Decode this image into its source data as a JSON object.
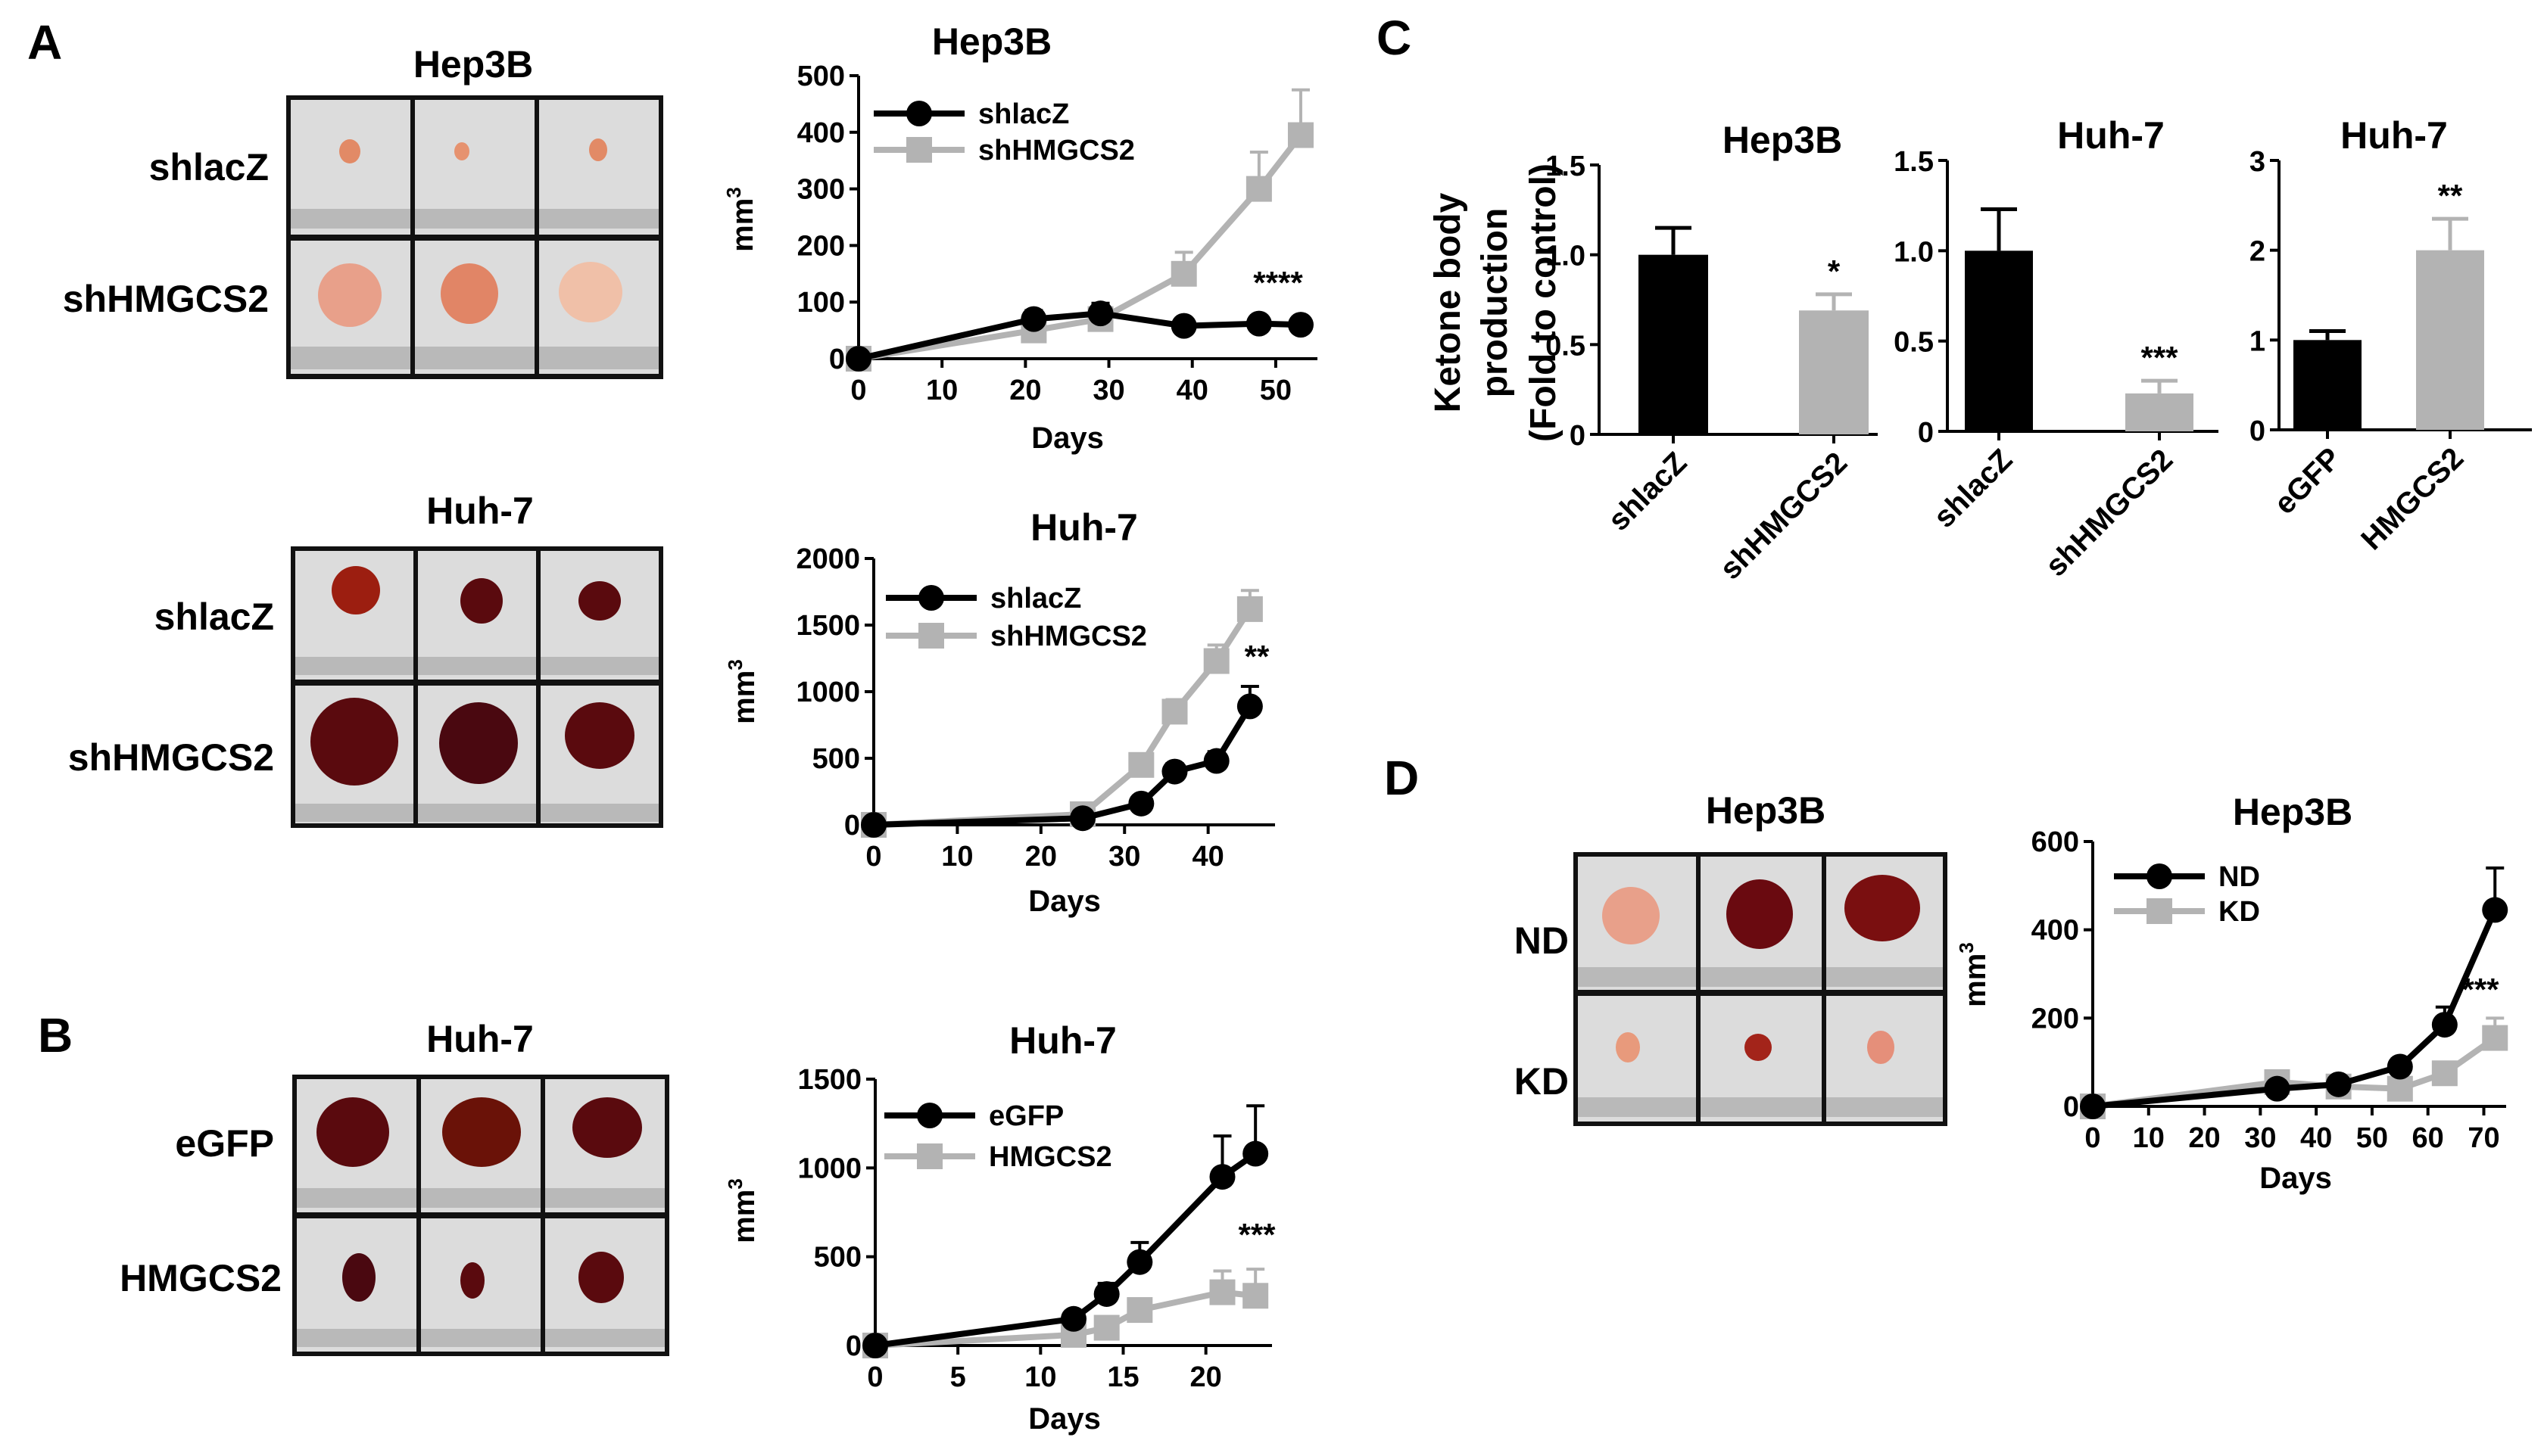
{
  "colors": {
    "black_series": "#000000",
    "gray_series": "#b3b3b3",
    "photo_bg": "#dcdcdc",
    "tumor_light": "#e89a7c",
    "tumor_dark": "#5a0a0e"
  },
  "panels": {
    "A": {
      "label": "A",
      "hep3b_photo": {
        "title": "Hep3B",
        "rows": [
          "shlacZ",
          "shHMGCS2"
        ]
      },
      "huh7_photo": {
        "title": "Huh-7",
        "rows": [
          "shlacZ",
          "shHMGCS2"
        ]
      }
    },
    "B": {
      "label": "B",
      "huh7_photo": {
        "title": "Huh-7",
        "rows": [
          "eGFP",
          "HMGCS2"
        ]
      }
    },
    "C": {
      "label": "C"
    },
    "D": {
      "label": "D",
      "hep3b_photo": {
        "title": "Hep3B",
        "rows": [
          "ND",
          "KD"
        ]
      }
    }
  },
  "chart_data": [
    {
      "id": "A_hep3b_growth",
      "type": "line",
      "title": "Hep3B",
      "xlabel": "Days",
      "ylabel": "mm3",
      "xlim": [
        0,
        55
      ],
      "ylim": [
        0,
        500
      ],
      "xticks": [
        "0",
        "10",
        "20",
        "30",
        "40",
        "50"
      ],
      "yticks": [
        "0",
        "100",
        "200",
        "300",
        "400",
        "500"
      ],
      "significance": "****",
      "series": [
        {
          "name": "shlacZ",
          "color": "#000000",
          "marker": "circle",
          "x": [
            0,
            21,
            29,
            39,
            48,
            53
          ],
          "values": [
            0,
            70,
            80,
            58,
            62,
            60
          ],
          "err": [
            0,
            15,
            18,
            8,
            10,
            8
          ]
        },
        {
          "name": "shHMGCS2",
          "color": "#b3b3b3",
          "marker": "square",
          "x": [
            0,
            21,
            29,
            39,
            48,
            53
          ],
          "values": [
            0,
            50,
            70,
            150,
            300,
            395
          ],
          "err": [
            0,
            12,
            15,
            38,
            65,
            80
          ]
        }
      ]
    },
    {
      "id": "A_huh7_growth",
      "type": "line",
      "title": "Huh-7",
      "xlabel": "Days",
      "ylabel": "mm3",
      "xlim": [
        0,
        48
      ],
      "ylim": [
        0,
        2000
      ],
      "xticks": [
        "0",
        "10",
        "20",
        "30",
        "40"
      ],
      "yticks": [
        "0",
        "500",
        "1000",
        "1500",
        "2000"
      ],
      "significance": "**",
      "series": [
        {
          "name": "shlacZ",
          "color": "#000000",
          "marker": "circle",
          "x": [
            0,
            25,
            32,
            36,
            41,
            45
          ],
          "values": [
            0,
            50,
            160,
            400,
            480,
            890
          ],
          "err": [
            0,
            20,
            30,
            60,
            70,
            150
          ]
        },
        {
          "name": "shHMGCS2",
          "color": "#b3b3b3",
          "marker": "square",
          "x": [
            0,
            25,
            32,
            36,
            41,
            45
          ],
          "values": [
            0,
            80,
            450,
            850,
            1230,
            1620
          ],
          "err": [
            0,
            25,
            60,
            90,
            120,
            140
          ]
        }
      ]
    },
    {
      "id": "B_huh7_growth",
      "type": "line",
      "title": "Huh-7",
      "xlabel": "Days",
      "ylabel": "mm3",
      "xlim": [
        0,
        24
      ],
      "ylim": [
        0,
        1500
      ],
      "xticks": [
        "0",
        "5",
        "10",
        "15",
        "20"
      ],
      "yticks": [
        "0",
        "500",
        "1000",
        "1500"
      ],
      "significance": "***",
      "series": [
        {
          "name": "eGFP",
          "color": "#000000",
          "marker": "circle",
          "x": [
            0,
            12,
            14,
            16,
            21,
            23
          ],
          "values": [
            0,
            150,
            290,
            470,
            950,
            1080
          ],
          "err": [
            0,
            40,
            60,
            110,
            230,
            270
          ]
        },
        {
          "name": "HMGCS2",
          "color": "#b3b3b3",
          "marker": "square",
          "x": [
            0,
            12,
            14,
            16,
            21,
            23
          ],
          "values": [
            0,
            60,
            100,
            200,
            300,
            280
          ],
          "err": [
            0,
            20,
            30,
            60,
            120,
            150
          ]
        }
      ]
    },
    {
      "id": "C_hep3b_ketone",
      "type": "bar",
      "title": "Hep3B",
      "ylabel_lines": [
        "Ketone body",
        "production",
        "(Fold to control)"
      ],
      "categories": [
        "shlacZ",
        "shHMGCS2"
      ],
      "values": [
        1.0,
        0.69
      ],
      "err": [
        0.15,
        0.09
      ],
      "colors": [
        "#000000",
        "#b3b3b3"
      ],
      "ylim": [
        0,
        1.5
      ],
      "yticks": [
        "0",
        "0.5",
        "1.0",
        "1.5"
      ],
      "significance": [
        "",
        "*"
      ]
    },
    {
      "id": "C_huh7_ketone_kd",
      "type": "bar",
      "title": "Huh-7",
      "categories": [
        "shlacZ",
        "shHMGCS2"
      ],
      "values": [
        1.0,
        0.21
      ],
      "err": [
        0.23,
        0.07
      ],
      "colors": [
        "#000000",
        "#b3b3b3"
      ],
      "ylim": [
        0,
        1.5
      ],
      "yticks": [
        "0",
        "0.5",
        "1.0",
        "1.5"
      ],
      "significance": [
        "",
        "***"
      ]
    },
    {
      "id": "C_huh7_ketone_oe",
      "type": "bar",
      "title": "Huh-7",
      "categories": [
        "eGFP",
        "HMGCS2"
      ],
      "values": [
        1.0,
        2.0
      ],
      "err": [
        0.1,
        0.35
      ],
      "colors": [
        "#000000",
        "#b3b3b3"
      ],
      "ylim": [
        0,
        3
      ],
      "yticks": [
        "0",
        "1",
        "2",
        "3"
      ],
      "significance": [
        "",
        "**"
      ]
    },
    {
      "id": "D_hep3b_growth",
      "type": "line",
      "title": "Hep3B",
      "xlabel": "Days",
      "ylabel": "mm3",
      "xlim": [
        0,
        74
      ],
      "ylim": [
        0,
        600
      ],
      "xticks": [
        "0",
        "10",
        "20",
        "30",
        "40",
        "50",
        "60",
        "70"
      ],
      "yticks": [
        "0",
        "200",
        "400",
        "600"
      ],
      "significance": "***",
      "series": [
        {
          "name": "ND",
          "color": "#000000",
          "marker": "circle",
          "x": [
            0,
            33,
            44,
            55,
            63,
            72
          ],
          "values": [
            0,
            40,
            50,
            90,
            185,
            445
          ],
          "err": [
            0,
            10,
            12,
            18,
            40,
            95
          ]
        },
        {
          "name": "KD",
          "color": "#b3b3b3",
          "marker": "square",
          "x": [
            0,
            33,
            44,
            55,
            63,
            72
          ],
          "values": [
            0,
            55,
            45,
            40,
            75,
            155
          ],
          "err": [
            0,
            12,
            12,
            12,
            20,
            45
          ]
        }
      ]
    }
  ]
}
